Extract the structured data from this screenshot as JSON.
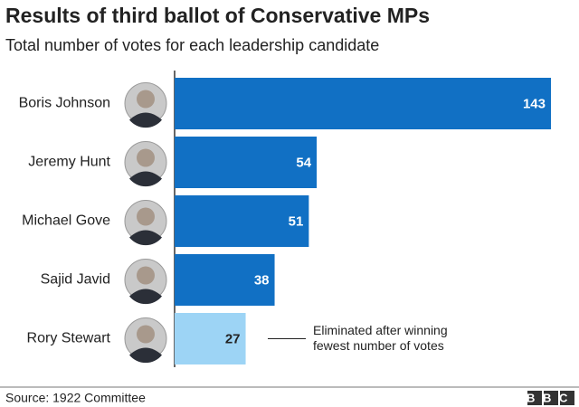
{
  "chart_data": {
    "type": "bar",
    "orientation": "horizontal",
    "title": "Results of third ballot of Conservative MPs",
    "subtitle": "Total number of votes for each leadership candidate",
    "categories": [
      "Boris Johnson",
      "Jeremy Hunt",
      "Michael Gove",
      "Sajid Javid",
      "Rory Stewart"
    ],
    "values": [
      143,
      54,
      51,
      38,
      27
    ],
    "colors": [
      "#1170c4",
      "#1170c4",
      "#1170c4",
      "#1170c4",
      "#9dd4f5"
    ],
    "value_label_colors": [
      "#ffffff",
      "#ffffff",
      "#ffffff",
      "#ffffff",
      "#222222"
    ],
    "annotation": [
      "Eliminated after winning",
      "fewest number of votes"
    ],
    "source": "Source: 1922 Committee",
    "logo": "BBC"
  }
}
